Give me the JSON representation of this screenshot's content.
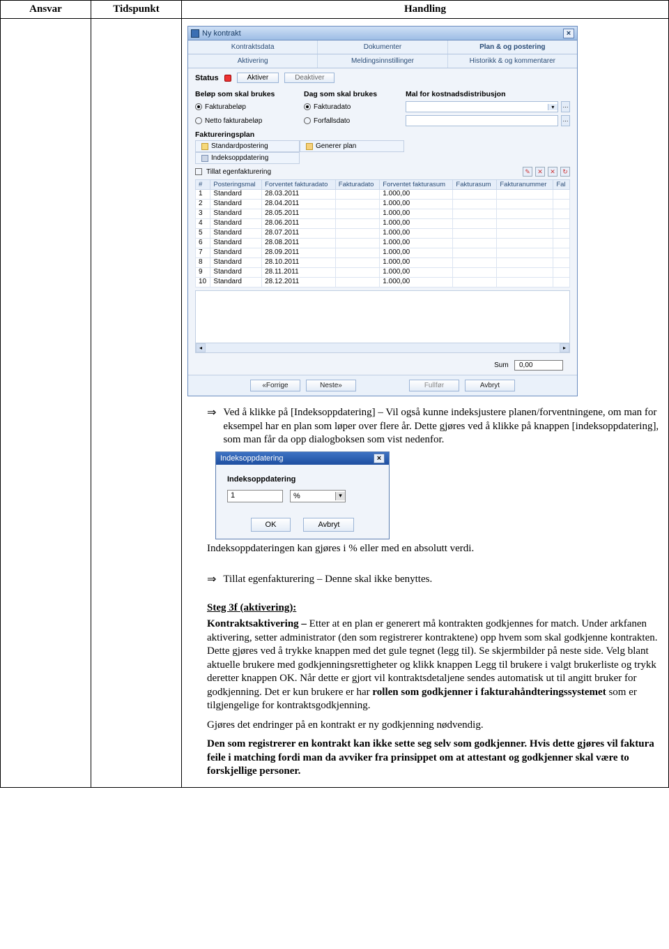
{
  "doc": {
    "headers": {
      "ansvar": "Ansvar",
      "tidspunkt": "Tidspunkt",
      "handling": "Handling"
    }
  },
  "app": {
    "title": "Ny kontrakt",
    "tabs1": {
      "kontraktsdata": "Kontraktsdata",
      "dokumenter": "Dokumenter",
      "plan": "Plan & og postering"
    },
    "tabs2": {
      "aktivering": "Aktivering",
      "meldings": "Meldingsinnstillinger",
      "historikk": "Historikk & og kommentarer"
    },
    "status": {
      "label": "Status",
      "aktiver": "Aktiver",
      "deaktiver": "Deaktiver"
    },
    "sectHeads": {
      "belop": "Beløp som skal brukes",
      "dag": "Dag som skal brukes",
      "mal": "Mal for kostnadsdistribusjon"
    },
    "radios": {
      "fakturabelop": "Fakturabeløp",
      "fakturadato": "Fakturadato",
      "netto": "Netto fakturabeløp",
      "forfall": "Forfallsdato"
    },
    "subheader": "Faktureringsplan",
    "planBtns": {
      "standard": "Standardpostering",
      "indeks": "Indeksoppdatering",
      "generer": "Generer plan"
    },
    "checkbox": "Tillat egenfakturering",
    "tableHeaders": {
      "num": "#",
      "mal": "Posteringsmal",
      "forvDato": "Forventet fakturadato",
      "fakDato": "Fakturadato",
      "forvSum": "Forventet fakturasum",
      "fakSum": "Fakturasum",
      "fakNum": "Fakturanummer",
      "fal": "Fal"
    },
    "rows": [
      {
        "n": "1",
        "mal": "Standard",
        "d": "28.03.2011",
        "s": "1.000,00"
      },
      {
        "n": "2",
        "mal": "Standard",
        "d": "28.04.2011",
        "s": "1.000,00"
      },
      {
        "n": "3",
        "mal": "Standard",
        "d": "28.05.2011",
        "s": "1.000,00"
      },
      {
        "n": "4",
        "mal": "Standard",
        "d": "28.06.2011",
        "s": "1.000,00"
      },
      {
        "n": "5",
        "mal": "Standard",
        "d": "28.07.2011",
        "s": "1.000,00"
      },
      {
        "n": "6",
        "mal": "Standard",
        "d": "28.08.2011",
        "s": "1.000,00"
      },
      {
        "n": "7",
        "mal": "Standard",
        "d": "28.09.2011",
        "s": "1.000,00"
      },
      {
        "n": "8",
        "mal": "Standard",
        "d": "28.10.2011",
        "s": "1.000,00"
      },
      {
        "n": "9",
        "mal": "Standard",
        "d": "28.11.2011",
        "s": "1.000,00"
      },
      {
        "n": "10",
        "mal": "Standard",
        "d": "28.12.2011",
        "s": "1.000,00"
      }
    ],
    "sum": {
      "label": "Sum",
      "value": "0,00"
    },
    "nav": {
      "forrige": "«Forrige",
      "neste": "Neste»",
      "fullfor": "Fullfør",
      "avbryt": "Avbryt"
    }
  },
  "dialog": {
    "title": "Indeksoppdatering",
    "label": "Indeksoppdatering",
    "value": "1",
    "unit": "%",
    "ok": "OK",
    "avbryt": "Avbryt"
  },
  "text": {
    "p1": "Ved å klikke på [Indeksoppdatering] – Vil også kunne indeksjustere planen/forventningene, om man for eksempel har en plan som løper over flere år. Dette gjøres ved å klikke på knappen [indeksoppdatering], som man får da opp dialogboksen som vist nedenfor.",
    "p2": "Indeksoppdateringen kan gjøres i % eller med en absolutt verdi.",
    "p3": "Tillat egenfakturering – Denne skal ikke benyttes.",
    "stepH": "Steg 3f (aktivering):",
    "p4a": "Kontraktsaktivering –",
    "p4b": " Etter at en plan er generert må kontrakten godkjennes for match. Under arkfanen aktivering, setter administrator (den som registrerer kontraktene) opp hvem som skal godkjenne kontrakten. Dette gjøres ved å trykke knappen med det gule tegnet (legg til). Se skjermbilder på neste side. Velg blant aktuelle brukere med godkjenningsrettigheter og klikk knappen Legg til brukere i valgt brukerliste og trykk deretter knappen OK. Når dette er gjort vil kontraktsdetaljene sendes automatisk ut til angitt bruker for godkjenning. Det er kun brukere er har ",
    "p4c": "rollen som godkjenner i fakturahåndteringssystemet",
    "p4d": " som er tilgjengelige for kontraktsgodkjenning.",
    "p5": "Gjøres det endringer på en kontrakt er ny godkjenning nødvendig.",
    "p6": "Den som registrerer en kontrakt kan ikke sette seg selv som godkjenner. Hvis dette gjøres vil faktura feile i matching fordi man da avviker fra prinsippet om at attestant og godkjenner skal være to forskjellige personer."
  }
}
